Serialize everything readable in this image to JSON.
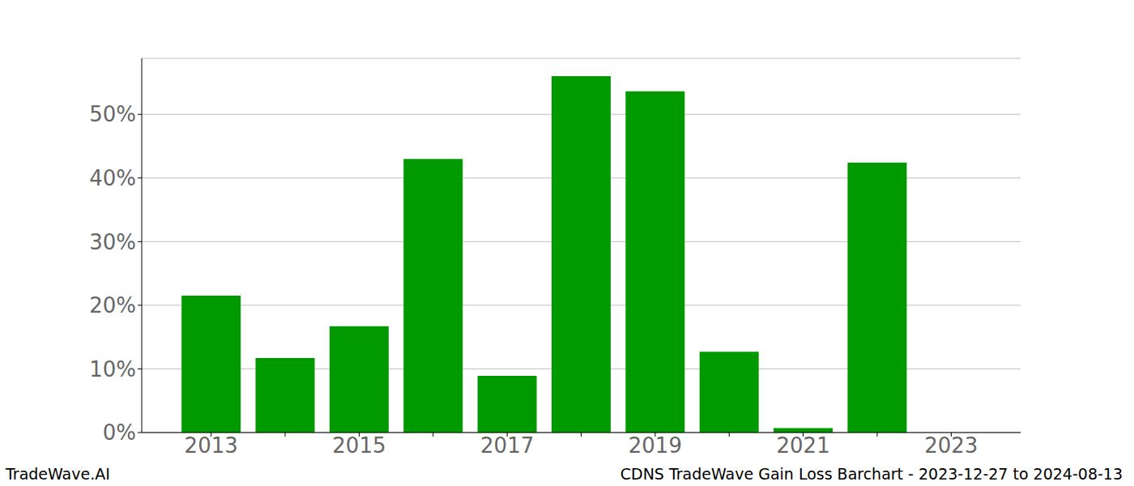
{
  "chart_data": {
    "type": "bar",
    "title": "CDNS TradeWave Gain Loss Barchart - 2023-12-27 to 2024-08-13",
    "annotations": [
      "TradeWave.AI"
    ],
    "categories": [
      "2013",
      null,
      "2015",
      null,
      "2017",
      null,
      "2019",
      null,
      "2021",
      null,
      "2023"
    ],
    "values": [
      21.5,
      11.7,
      16.7,
      43.0,
      8.9,
      56.0,
      53.6,
      12.7,
      0.7,
      42.4,
      0
    ],
    "color": "#009900",
    "ylim": [
      0,
      58.8
    ],
    "yticks": [
      {
        "value": 0,
        "label": "0%"
      },
      {
        "value": 10,
        "label": "10%"
      },
      {
        "value": 20,
        "label": "20%"
      },
      {
        "value": 30,
        "label": "30%"
      },
      {
        "value": 40,
        "label": "40%"
      },
      {
        "value": 50,
        "label": "50%"
      }
    ],
    "grid": true
  }
}
